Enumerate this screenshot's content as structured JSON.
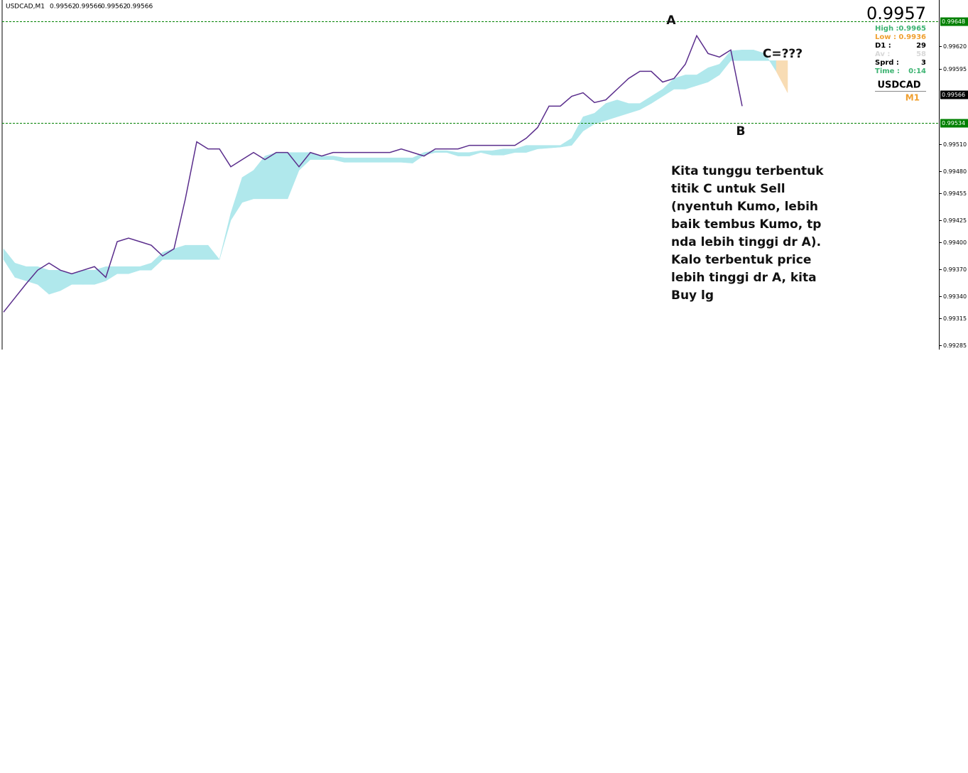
{
  "header": {
    "symbol": "USDCAD,M1",
    "ohlc": [
      0.99562,
      0.99566,
      0.99562,
      0.99566
    ]
  },
  "info": {
    "price": "0.9957",
    "rows": [
      {
        "label": "High :",
        "value": "0.9965",
        "color": "#3cb371"
      },
      {
        "label": "Low :",
        "value": "0.9936",
        "color": "#f0a030"
      },
      {
        "label": "D1 :",
        "value": "29",
        "color": "#000000"
      },
      {
        "label": "Av :",
        "value": "58",
        "color": "#d8d8d8"
      },
      {
        "label": "Sprd :",
        "value": "3",
        "color": "#000000"
      },
      {
        "label": "Time :",
        "value": "0:14",
        "color": "#3cb371"
      }
    ],
    "symbol": "USDCAD",
    "timeframe": "M1"
  },
  "annotations": {
    "a": "A",
    "b": "B",
    "c": "C=???",
    "note": [
      "Kita tunggu terbentuk",
      "titik C untuk Sell",
      "(nyentuh Kumo, lebih",
      "baik tembus Kumo, tp",
      "nda lebih tinggi dr A).",
      "Kalo terbentuk price",
      "lebih tinggi dr A, kita",
      "Buy lg"
    ]
  },
  "chart_data": {
    "type": "line",
    "ylim": [
      0.9928,
      0.99672
    ],
    "yticks": [
      {
        "value": 0.9962,
        "label": "0.99620"
      },
      0.99595,
      {
        "value": 0.9951,
        "label": "0.99510"
      },
      {
        "value": 0.9948,
        "label": "0.99480"
      },
      0.99455,
      0.99425,
      {
        "value": 0.994,
        "label": "0.99400"
      },
      {
        "value": 0.9937,
        "label": "0.99370"
      },
      {
        "value": 0.9934,
        "label": "0.99340"
      },
      0.99315,
      0.99285
    ],
    "levels": [
      {
        "value": 0.99648,
        "color": "#008000"
      },
      {
        "value": 0.99534,
        "color": "#008000"
      }
    ],
    "bid": 0.99566,
    "series": [
      {
        "name": "USDCAD",
        "color": "#5a2d8c",
        "values": [
          0.99322,
          0.99338,
          0.99354,
          0.99369,
          0.99377,
          0.99369,
          0.99365,
          0.99369,
          0.99373,
          0.99361,
          0.99401,
          0.99405,
          0.99401,
          0.99397,
          0.99385,
          0.99393,
          0.99449,
          0.99513,
          0.99505,
          0.99505,
          0.99485,
          0.99493,
          0.99501,
          0.99493,
          0.99501,
          0.99501,
          0.99485,
          0.99501,
          0.99497,
          0.99501,
          0.99501,
          0.99501,
          0.99501,
          0.99501,
          0.99501,
          0.99505,
          0.99501,
          0.99497,
          0.99505,
          0.99505,
          0.99505,
          0.99509,
          0.99509,
          0.99509,
          0.99509,
          0.99509,
          0.99517,
          0.99529,
          0.99553,
          0.99553,
          0.99564,
          0.99568,
          0.99557,
          0.9956,
          0.99572,
          0.99584,
          0.99592,
          0.99592,
          0.9958,
          0.99584,
          0.996,
          0.99632,
          0.99612,
          0.99608,
          0.99616,
          0.99553
        ]
      },
      {
        "name": "Senkou Span A",
        "color": "#b0e8ec",
        "values": [
          0.99393,
          0.99377,
          0.99373,
          0.99373,
          0.99369,
          0.99369,
          0.99365,
          0.99369,
          0.99369,
          0.99373,
          0.99373,
          0.99373,
          0.99373,
          0.99377,
          0.99389,
          0.99393,
          0.99397,
          0.99397,
          0.99397,
          0.99381,
          0.99433,
          0.99473,
          0.99481,
          0.99497,
          0.99501,
          0.99501,
          0.99501,
          0.99501,
          0.99497,
          0.99497,
          0.99495,
          0.99495,
          0.99495,
          0.99495,
          0.99495,
          0.99495,
          0.99495,
          0.99501,
          0.99503,
          0.99503,
          0.99501,
          0.99501,
          0.99503,
          0.99503,
          0.99505,
          0.99505,
          0.99509,
          0.99509,
          0.99509,
          0.99509,
          0.99517,
          0.99541,
          0.99545,
          0.99556,
          0.9956,
          0.99556,
          0.99556,
          0.99564,
          0.99572,
          0.99584,
          0.99588,
          0.99588,
          0.99596,
          0.996,
          0.99615,
          0.99616,
          0.99616,
          0.99612,
          0.99592,
          0.99568
        ]
      },
      {
        "name": "Senkou Span B",
        "color": "#f8dcb4",
        "values": [
          0.99381,
          0.99361,
          0.99357,
          0.99353,
          0.99342,
          0.99346,
          0.99353,
          0.99353,
          0.99353,
          0.99357,
          0.99365,
          0.99365,
          0.99369,
          0.99369,
          0.99381,
          0.99381,
          0.99381,
          0.99381,
          0.99381,
          0.99381,
          0.99425,
          0.99445,
          0.99449,
          0.99449,
          0.99449,
          0.99449,
          0.99481,
          0.99493,
          0.99493,
          0.99493,
          0.9949,
          0.9949,
          0.9949,
          0.9949,
          0.9949,
          0.9949,
          0.99489,
          0.99498,
          0.99501,
          0.99501,
          0.99497,
          0.99497,
          0.99501,
          0.99498,
          0.99498,
          0.99501,
          0.99501,
          0.99505,
          0.99506,
          0.99507,
          0.99509,
          0.99525,
          0.99533,
          0.99537,
          0.99541,
          0.99545,
          0.99549,
          0.99556,
          0.99564,
          0.99572,
          0.99572,
          0.99576,
          0.9958,
          0.99588,
          0.99604,
          0.99604,
          0.99604,
          0.99604,
          0.99604,
          0.99604
        ]
      }
    ]
  }
}
